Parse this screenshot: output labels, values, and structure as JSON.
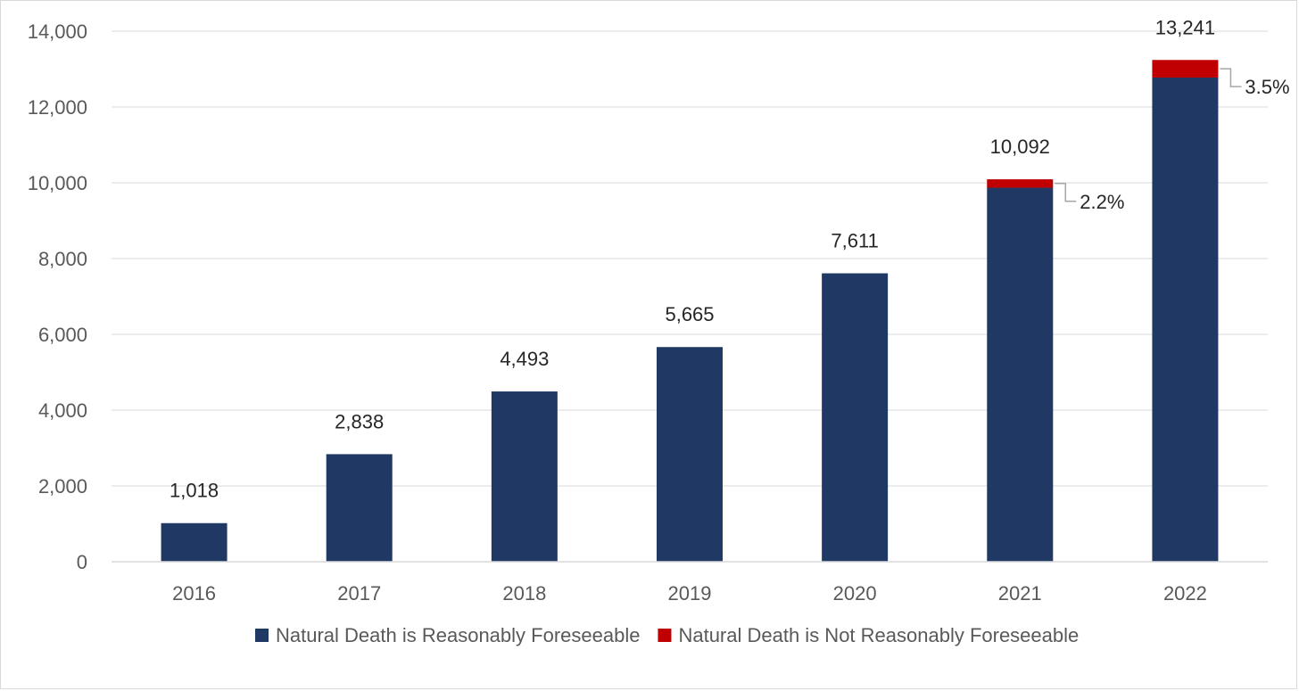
{
  "chart_data": {
    "type": "bar",
    "stacked": true,
    "categories": [
      "2016",
      "2017",
      "2018",
      "2019",
      "2020",
      "2021",
      "2022"
    ],
    "series": [
      {
        "name": "Natural Death is Reasonably Foreseeable",
        "color": "#203864",
        "values": [
          1018,
          2838,
          4493,
          5665,
          7611,
          9870,
          12777
        ]
      },
      {
        "name": "Natural Death is Not Reasonably Foreseeable",
        "color": "#c00000",
        "values": [
          0,
          0,
          0,
          0,
          0,
          222,
          464
        ]
      }
    ],
    "total_labels": [
      "1,018",
      "2,838",
      "4,493",
      "5,665",
      "7,611",
      "10,092",
      "13,241"
    ],
    "totals": [
      1018,
      2838,
      4493,
      5665,
      7611,
      10092,
      13241
    ],
    "annotations": [
      {
        "category": "2021",
        "text": "2.2%"
      },
      {
        "category": "2022",
        "text": "3.5%"
      }
    ],
    "y_ticks": [
      0,
      2000,
      4000,
      6000,
      8000,
      10000,
      12000,
      14000
    ],
    "y_tick_labels": [
      "0",
      "2,000",
      "4,000",
      "6,000",
      "8,000",
      "10,000",
      "12,000",
      "14,000"
    ],
    "ylim": [
      0,
      14000
    ],
    "grid": true,
    "legend_position": "bottom",
    "title": "",
    "xlabel": "",
    "ylabel": ""
  }
}
